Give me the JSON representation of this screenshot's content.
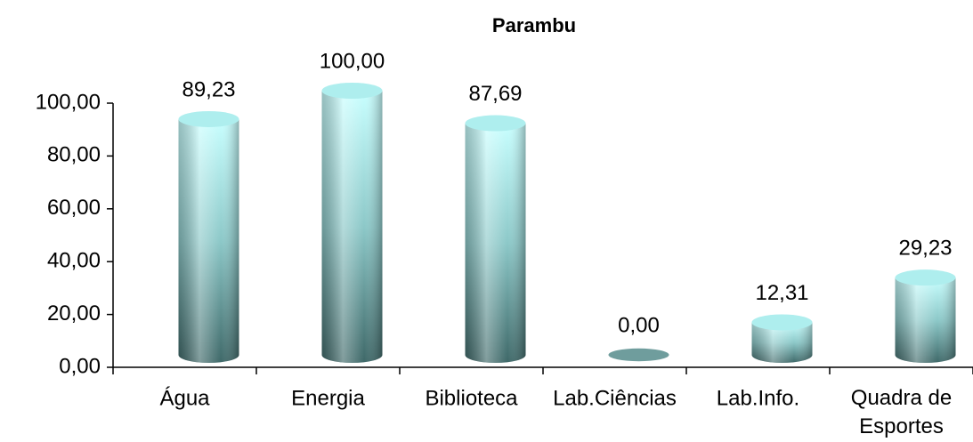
{
  "chart_data": {
    "type": "bar",
    "title": "Parambu",
    "categories": [
      "Água",
      "Energia",
      "Biblioteca",
      "Lab.Ciências",
      "Lab.Info.",
      "Quadra de Esportes"
    ],
    "values": [
      89.23,
      100,
      87.69,
      0,
      12.31,
      29.23
    ],
    "value_labels": [
      "89,23",
      "100,00",
      "87,69",
      "0,00",
      "12,31",
      "29,23"
    ],
    "color": "#7fd0d0",
    "ylim": [
      0,
      100
    ],
    "yticks": [
      {
        "value": 0,
        "label": "0,00"
      },
      {
        "value": 20,
        "label": "20,00"
      },
      {
        "value": 40,
        "label": "40,00"
      },
      {
        "value": 60,
        "label": "60,00"
      },
      {
        "value": 80,
        "label": "80,00"
      },
      {
        "value": 100,
        "label": "100,00"
      }
    ],
    "grid": false
  }
}
